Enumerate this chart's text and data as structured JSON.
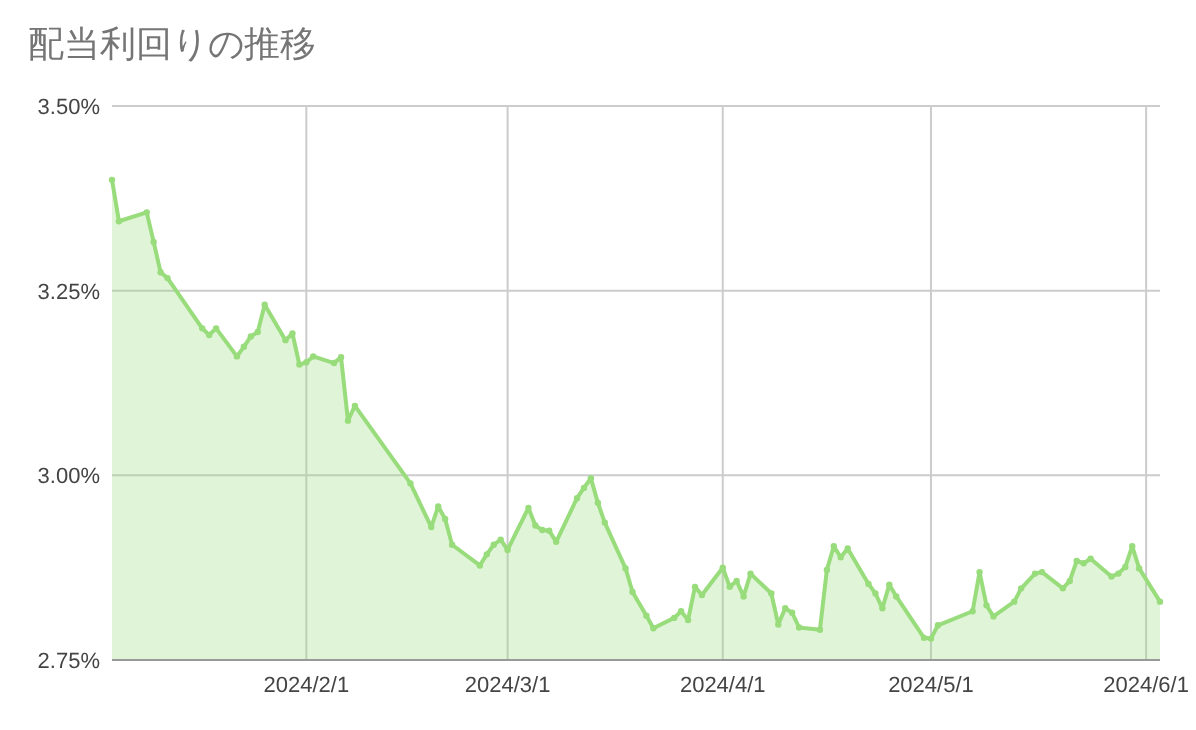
{
  "chart_data": {
    "type": "area",
    "title": "配当利回りの推移",
    "x": [
      "2024-01-04",
      "2024-01-05",
      "2024-01-09",
      "2024-01-10",
      "2024-01-11",
      "2024-01-12",
      "2024-01-17",
      "2024-01-18",
      "2024-01-19",
      "2024-01-22",
      "2024-01-23",
      "2024-01-24",
      "2024-01-25",
      "2024-01-26",
      "2024-01-29",
      "2024-01-30",
      "2024-01-31",
      "2024-02-01",
      "2024-02-02",
      "2024-02-05",
      "2024-02-06",
      "2024-02-07",
      "2024-02-08",
      "2024-02-16",
      "2024-02-19",
      "2024-02-20",
      "2024-02-21",
      "2024-02-22",
      "2024-02-26",
      "2024-02-27",
      "2024-02-28",
      "2024-02-29",
      "2024-03-01",
      "2024-03-04",
      "2024-03-05",
      "2024-03-06",
      "2024-03-07",
      "2024-03-08",
      "2024-03-11",
      "2024-03-12",
      "2024-03-13",
      "2024-03-14",
      "2024-03-15",
      "2024-03-18",
      "2024-03-19",
      "2024-03-21",
      "2024-03-22",
      "2024-03-25",
      "2024-03-26",
      "2024-03-27",
      "2024-03-28",
      "2024-03-29",
      "2024-04-01",
      "2024-04-02",
      "2024-04-03",
      "2024-04-04",
      "2024-04-05",
      "2024-04-08",
      "2024-04-09",
      "2024-04-10",
      "2024-04-11",
      "2024-04-12",
      "2024-04-15",
      "2024-04-16",
      "2024-04-17",
      "2024-04-18",
      "2024-04-19",
      "2024-04-22",
      "2024-04-23",
      "2024-04-24",
      "2024-04-25",
      "2024-04-26",
      "2024-04-30",
      "2024-05-01",
      "2024-05-02",
      "2024-05-07",
      "2024-05-08",
      "2024-05-09",
      "2024-05-10",
      "2024-05-13",
      "2024-05-14",
      "2024-05-16",
      "2024-05-17",
      "2024-05-20",
      "2024-05-21",
      "2024-05-22",
      "2024-05-23",
      "2024-05-24",
      "2024-05-27",
      "2024-05-28",
      "2024-05-29",
      "2024-05-30",
      "2024-05-31",
      "2024-06-03"
    ],
    "series": [
      {
        "color": "#98dc7c",
        "values": [
          3.4,
          3.344,
          3.356,
          3.316,
          3.275,
          3.267,
          3.199,
          3.19,
          3.199,
          3.161,
          3.174,
          3.188,
          3.194,
          3.231,
          3.183,
          3.192,
          3.15,
          3.153,
          3.161,
          3.152,
          3.16,
          3.074,
          3.094,
          2.989,
          2.93,
          2.958,
          2.941,
          2.906,
          2.878,
          2.893,
          2.906,
          2.913,
          2.899,
          2.956,
          2.932,
          2.926,
          2.925,
          2.91,
          2.969,
          2.983,
          2.996,
          2.963,
          2.936,
          2.874,
          2.842,
          2.81,
          2.793,
          2.807,
          2.816,
          2.804,
          2.849,
          2.838,
          2.875,
          2.849,
          2.857,
          2.836,
          2.867,
          2.84,
          2.798,
          2.82,
          2.814,
          2.794,
          2.791,
          2.872,
          2.904,
          2.889,
          2.901,
          2.853,
          2.84,
          2.82,
          2.852,
          2.836,
          2.78,
          2.779,
          2.797,
          2.816,
          2.869,
          2.824,
          2.809,
          2.829,
          2.847,
          2.867,
          2.869,
          2.847,
          2.857,
          2.884,
          2.881,
          2.887,
          2.863,
          2.867,
          2.876,
          2.904,
          2.874,
          2.829
        ]
      }
    ],
    "xlim": [
      "2024-01-04",
      "2024-06-03"
    ],
    "xticks": [
      {
        "value": "2024-02-01",
        "label": "2024/2/1"
      },
      {
        "value": "2024-03-01",
        "label": "2024/3/1"
      },
      {
        "value": "2024-04-01",
        "label": "2024/4/1"
      },
      {
        "value": "2024-05-01",
        "label": "2024/5/1"
      },
      {
        "value": "2024-06-01",
        "label": "2024/6/1"
      }
    ],
    "ylim": [
      2.75,
      3.5
    ],
    "yticks": [
      {
        "value": 2.75,
        "label": "2.75%"
      },
      {
        "value": 3.0,
        "label": "3.00%"
      },
      {
        "value": 3.25,
        "label": "3.25%"
      },
      {
        "value": 3.5,
        "label": "3.50%"
      }
    ],
    "grid": true,
    "marker": "circle",
    "line_style": "solid"
  }
}
